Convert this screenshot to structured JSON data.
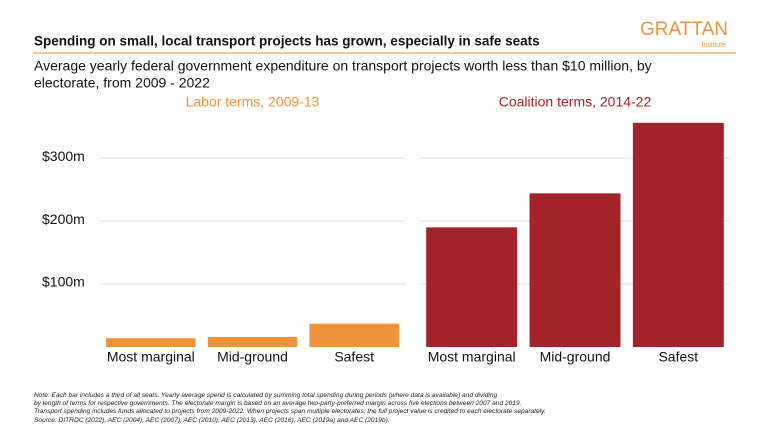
{
  "title": "Spending on small, local transport projects has grown, especially in safe seats",
  "subtitle": [
    "Average yearly federal government expenditure on transport projects worth less than $10 million, by",
    "electorate, from 2009 - 2022"
  ],
  "logo": {
    "name": "GRATTAN",
    "sub": "Institute"
  },
  "notes": [
    "Note: Each bar includes a third of all seats. Yearly average spend is calculated by summing total spending during periods (where data is available) and dividing",
    "by length of terms for respective governments. The electorate margin is based on an average two-party-preferred margin across five elections between 2007 and 2019.",
    "Transport spending includes funds allocated to projects from 2009-2022. When projects span multiple electorates, the full project value is credited to each electorate separately.",
    "Source: DITRDC (2022), AEC (2004), AEC (2007), AEC (2010), AEC (2013), AEC (2016), AEC (2019a) and AEC (2019b)."
  ],
  "chart_data": [
    {
      "type": "bar",
      "title": "Labor terms, 2009-13",
      "categories": [
        "Most marginal",
        "Mid-ground",
        "Safest"
      ],
      "values": [
        14,
        16,
        37
      ],
      "color": "#f0923a",
      "ylim": [
        0,
        370
      ],
      "yticks": [
        {
          "value": 100,
          "label": "$100m"
        },
        {
          "value": 200,
          "label": "$200m"
        },
        {
          "value": 300,
          "label": "$300m"
        }
      ],
      "grid": true
    },
    {
      "type": "bar",
      "title": "Coalition terms, 2014-22",
      "categories": [
        "Most marginal",
        "Mid-ground",
        "Safest"
      ],
      "values": [
        190,
        244,
        356
      ],
      "color": "#a3232a",
      "ylim": [
        0,
        370
      ],
      "yticks": [
        100,
        200,
        300
      ],
      "grid": true
    }
  ]
}
